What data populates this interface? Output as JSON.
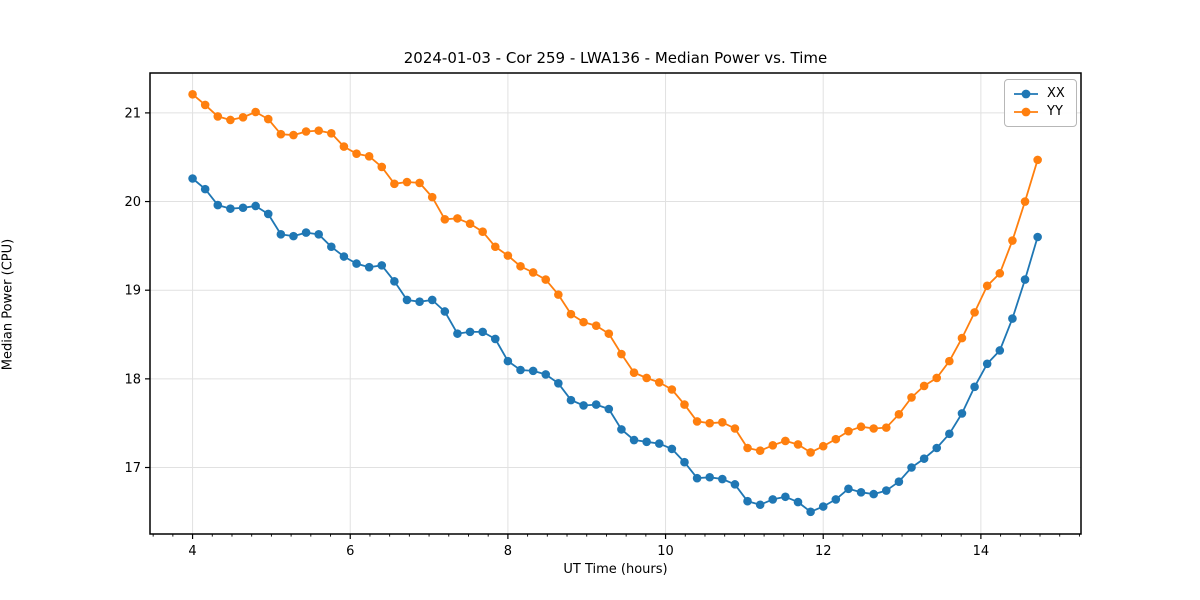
{
  "chart_data": {
    "type": "line",
    "title": "2024-01-03 - Cor 259 - LWA136 - Median Power vs. Time",
    "xlabel": "UT Time (hours)",
    "ylabel": "Median Power (CPU)",
    "xlim": [
      3.46,
      15.27
    ],
    "ylim": [
      16.25,
      21.45
    ],
    "x_ticks": [
      4,
      6,
      8,
      10,
      12,
      14
    ],
    "x_minor_step": 0.25,
    "y_ticks": [
      17,
      18,
      19,
      20,
      21
    ],
    "grid": true,
    "grid_color": "#e1e1e1",
    "legend_position": "upper right",
    "x_start": 4.0,
    "x_step": 0.16,
    "series": [
      {
        "name": "XX",
        "color": "#1f77b4",
        "values": [
          20.26,
          20.14,
          19.96,
          19.92,
          19.93,
          19.95,
          19.86,
          19.63,
          19.61,
          19.65,
          19.63,
          19.49,
          19.38,
          19.3,
          19.26,
          19.28,
          19.1,
          18.89,
          18.87,
          18.89,
          18.76,
          18.51,
          18.53,
          18.53,
          18.45,
          18.2,
          18.1,
          18.09,
          18.05,
          17.95,
          17.76,
          17.7,
          17.71,
          17.66,
          17.43,
          17.31,
          17.29,
          17.27,
          17.21,
          17.06,
          16.88,
          16.89,
          16.87,
          16.81,
          16.62,
          16.58,
          16.64,
          16.67,
          16.61,
          16.5,
          16.56,
          16.64,
          16.76,
          16.72,
          16.7,
          16.74,
          16.84,
          17.0,
          17.1,
          17.22,
          17.38,
          17.61,
          17.91,
          18.17,
          18.32,
          18.68,
          19.12,
          19.6
        ]
      },
      {
        "name": "YY",
        "color": "#ff7f0e",
        "values": [
          21.21,
          21.09,
          20.96,
          20.92,
          20.95,
          21.01,
          20.93,
          20.76,
          20.75,
          20.79,
          20.8,
          20.77,
          20.62,
          20.54,
          20.51,
          20.39,
          20.2,
          20.22,
          20.21,
          20.05,
          19.8,
          19.81,
          19.75,
          19.66,
          19.49,
          19.39,
          19.27,
          19.2,
          19.12,
          18.95,
          18.73,
          18.64,
          18.6,
          18.51,
          18.28,
          18.07,
          18.01,
          17.96,
          17.88,
          17.71,
          17.52,
          17.5,
          17.51,
          17.44,
          17.22,
          17.19,
          17.25,
          17.3,
          17.26,
          17.17,
          17.24,
          17.32,
          17.41,
          17.46,
          17.44,
          17.45,
          17.6,
          17.79,
          17.92,
          18.01,
          18.2,
          18.46,
          18.75,
          19.05,
          19.19,
          19.56,
          20.0,
          20.47
        ]
      }
    ]
  }
}
